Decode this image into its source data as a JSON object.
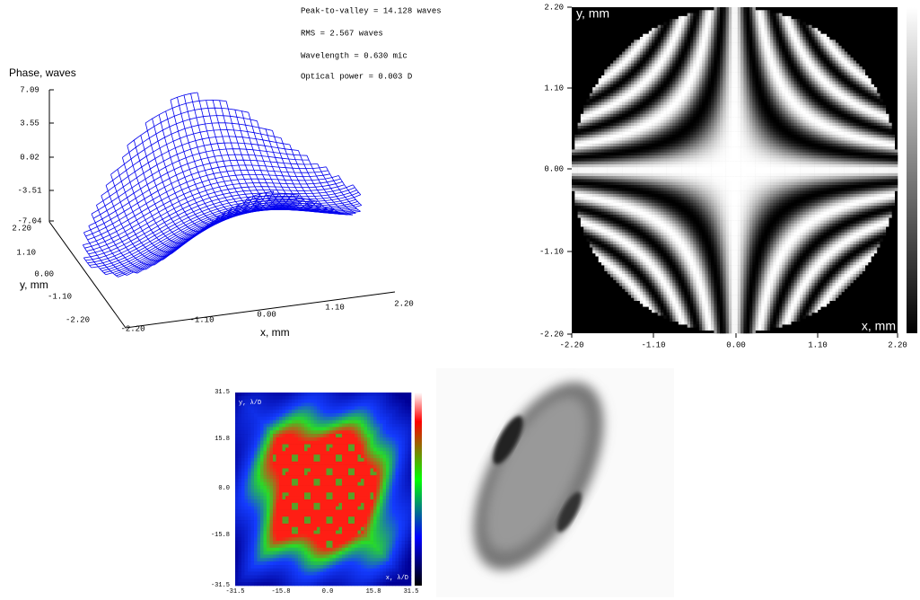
{
  "stats": [
    "Peak-to-valley = 14.128 waves",
    "RMS = 2.567 waves",
    "Wavelength = 0.630 mic",
    "Optical power = 0.003 D"
  ],
  "surface_plot": {
    "z_label": "Phase, waves",
    "z_ticks": [
      "7.09",
      "3.55",
      "0.02",
      "-3.51",
      "-7.04"
    ],
    "y_label": "y, mm",
    "y_ticks": [
      "2.20",
      "1.10",
      "0.00",
      "-1.10",
      "-2.20"
    ],
    "x_label": "x, mm",
    "x_ticks": [
      "-2.20",
      "-1.10",
      "0.00",
      "1.10",
      "2.20"
    ]
  },
  "interferogram": {
    "y_label": "y, mm",
    "y_ticks": [
      "2.20",
      "1.10",
      "0.00",
      "-1.10",
      "-2.20"
    ],
    "x_label": "x, mm",
    "x_ticks": [
      "-2.20",
      "-1.10",
      "0.00",
      "1.10",
      "2.20"
    ]
  },
  "psf_map": {
    "y_label": "y, λ/D",
    "y_ticks": [
      "31.5",
      "15.8",
      "0.0",
      "-15.8",
      "-31.5"
    ],
    "x_label": "x, λ/D",
    "x_ticks": [
      "-31.5",
      "-15.8",
      "0.0",
      "15.8",
      "31.5"
    ]
  }
}
